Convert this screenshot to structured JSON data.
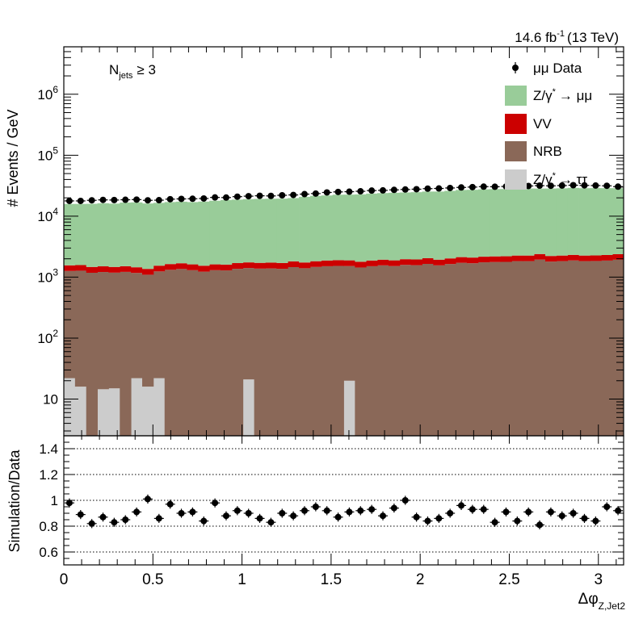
{
  "chart_data": [
    {
      "panel": "main",
      "type": "bar",
      "stacked": true,
      "log_y": true,
      "lumi_label": "14.6 fb",
      "lumi_sup": "-1",
      "lumi_energy": "(13 TeV)",
      "annotation_main": "N",
      "annotation_sub": "jets",
      "annotation_rest": "≥ 3",
      "ylabel": "# Events / GeV",
      "ylim": [
        2.5,
        6000000
      ],
      "yticks": [
        {
          "value": 10,
          "base": "10",
          "exp": ""
        },
        {
          "value": 100,
          "base": "10",
          "exp": "2"
        },
        {
          "value": 1000,
          "base": "10",
          "exp": "3"
        },
        {
          "value": 10000,
          "base": "10",
          "exp": "4"
        },
        {
          "value": 100000,
          "base": "10",
          "exp": "5"
        },
        {
          "value": 1000000,
          "base": "10",
          "exp": "6"
        }
      ],
      "xlim": [
        0,
        3.1416
      ],
      "bin_width": 0.0628,
      "legend_position": "top-right",
      "legend": [
        {
          "key": "data",
          "label": "μμ Data",
          "color": "#000000",
          "style": "marker"
        },
        {
          "key": "zmm",
          "label": "Z/γ",
          "sup": "*",
          "tail": "→ μμ",
          "color": "#99cc99",
          "style": "box"
        },
        {
          "key": "vv",
          "label": "VV",
          "color": "#cc0000",
          "style": "box"
        },
        {
          "key": "nrb",
          "label": "NRB",
          "color": "#8a6858",
          "style": "box"
        },
        {
          "key": "ztt",
          "label": "Z/γ",
          "sup": "*",
          "tail": "→ ττ",
          "color": "#cccccc",
          "style": "box"
        }
      ],
      "series": [
        {
          "key": "ztt",
          "name": "Z/γ* → ττ",
          "color": "#cccccc",
          "values": [
            22,
            16,
            0,
            14.5,
            15,
            0,
            22,
            16,
            22,
            0,
            0,
            0,
            0,
            0,
            0,
            0,
            21,
            0,
            0,
            0,
            0,
            0,
            0,
            0,
            0,
            20,
            0,
            0,
            0,
            0,
            0,
            0,
            0,
            0,
            0,
            0,
            0,
            0,
            0,
            0,
            0,
            0,
            0,
            0,
            0,
            0,
            0,
            0,
            0,
            0
          ]
        },
        {
          "key": "nrb",
          "name": "NRB",
          "color": "#8a6858",
          "values": [
            1240,
            1260,
            1180,
            1200,
            1170,
            1220,
            1150,
            1080,
            1220,
            1320,
            1360,
            1300,
            1230,
            1300,
            1290,
            1370,
            1390,
            1380,
            1390,
            1370,
            1460,
            1400,
            1470,
            1510,
            1530,
            1500,
            1440,
            1510,
            1560,
            1520,
            1590,
            1570,
            1650,
            1560,
            1640,
            1720,
            1690,
            1750,
            1770,
            1780,
            1830,
            1830,
            1940,
            1800,
            1830,
            1880,
            1830,
            1840,
            1870,
            1930
          ]
        },
        {
          "key": "vv",
          "name": "VV",
          "color": "#cc0000",
          "values": [
            300,
            300,
            290,
            290,
            285,
            290,
            280,
            270,
            300,
            320,
            330,
            320,
            310,
            320,
            315,
            330,
            335,
            335,
            340,
            335,
            355,
            340,
            355,
            365,
            370,
            365,
            350,
            365,
            375,
            365,
            380,
            380,
            395,
            375,
            390,
            410,
            405,
            415,
            420,
            420,
            430,
            430,
            455,
            425,
            430,
            440,
            430,
            430,
            440,
            450
          ]
        },
        {
          "key": "zmm",
          "name": "Z/γ* → μμ",
          "color": "#99cc99",
          "values": [
            14300,
            14300,
            14500,
            14800,
            14600,
            15200,
            15400,
            14800,
            15000,
            15400,
            15600,
            15400,
            15800,
            16300,
            16800,
            17000,
            17300,
            17500,
            17600,
            17700,
            18000,
            19000,
            19700,
            20000,
            20600,
            20700,
            21000,
            21600,
            22000,
            22300,
            22500,
            22800,
            23300,
            23400,
            24000,
            24800,
            25000,
            25400,
            25600,
            25700,
            26000,
            26200,
            26000,
            26200,
            26400,
            26800,
            26500,
            26600,
            26500,
            26400
          ]
        }
      ],
      "data_points": [
        17800,
        17800,
        18200,
        18500,
        18400,
        18600,
        18700,
        18200,
        18300,
        19000,
        19200,
        19300,
        19500,
        20300,
        20200,
        20900,
        21300,
        21600,
        21500,
        22000,
        22300,
        23000,
        23500,
        24500,
        25000,
        25200,
        25600,
        26300,
        26500,
        27000,
        27400,
        27700,
        28300,
        28500,
        29000,
        29600,
        30000,
        30500,
        30400,
        30700,
        31000,
        31300,
        31700,
        31500,
        31800,
        32200,
        32000,
        31800,
        31500,
        30500
      ]
    },
    {
      "panel": "ratio",
      "type": "scatter",
      "ylabel": "Simulation/Data",
      "ylim": [
        0.5,
        1.5
      ],
      "yticks": [
        0.6,
        0.8,
        1,
        1.2,
        1.4
      ],
      "ytick_labels": [
        "0.6",
        "0.8",
        "1",
        "1.2",
        "1.4"
      ],
      "grid_lines": [
        0.6,
        0.8,
        1,
        1.2,
        1.4
      ],
      "xlim": [
        0,
        3.1416
      ],
      "xticks": [
        0,
        0.5,
        1,
        1.5,
        2,
        2.5,
        3
      ],
      "xtick_labels": [
        "0",
        "0.5",
        "1",
        "1.5",
        "2",
        "2.5",
        "3"
      ],
      "xlabel_main": "Δφ",
      "xlabel_sub": "Z,Jet2",
      "values": [
        0.98,
        0.89,
        0.82,
        0.87,
        0.83,
        0.85,
        0.91,
        1.01,
        0.86,
        0.97,
        0.9,
        0.91,
        0.84,
        0.98,
        0.88,
        0.92,
        0.9,
        0.86,
        0.83,
        0.9,
        0.88,
        0.92,
        0.95,
        0.92,
        0.87,
        0.91,
        0.92,
        0.93,
        0.88,
        0.94,
        1.0,
        0.87,
        0.84,
        0.86,
        0.9,
        0.96,
        0.93,
        0.93,
        0.83,
        0.91,
        0.84,
        0.91,
        0.81,
        0.91,
        0.88,
        0.9,
        0.86,
        0.84,
        0.95,
        0.92
      ],
      "errors": [
        0.035,
        0.035,
        0.035,
        0.035,
        0.035,
        0.035,
        0.035,
        0.035,
        0.035,
        0.035,
        0.035,
        0.035,
        0.035,
        0.035,
        0.035,
        0.035,
        0.035,
        0.035,
        0.035,
        0.035,
        0.035,
        0.035,
        0.035,
        0.035,
        0.035,
        0.035,
        0.035,
        0.035,
        0.035,
        0.035,
        0.035,
        0.035,
        0.035,
        0.035,
        0.035,
        0.035,
        0.035,
        0.035,
        0.035,
        0.035,
        0.035,
        0.035,
        0.035,
        0.035,
        0.035,
        0.035,
        0.035,
        0.035,
        0.035,
        0.035
      ]
    }
  ]
}
